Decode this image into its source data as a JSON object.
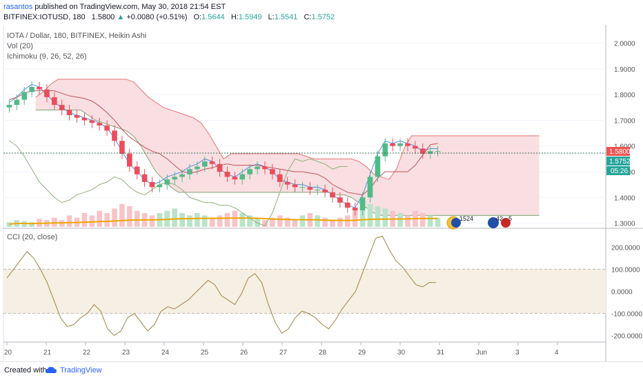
{
  "header": {
    "publisher": "rasantos",
    "published_text": "published on TradingView.com, May 30, 2018 21:54 EST",
    "symbol": "BITFINEX:IOTUSD, 180",
    "price": "1.5800",
    "change": "+0.0080 (+0.51%)",
    "o_label": "O:",
    "o_value": "1.5644",
    "h_label": "H:",
    "h_value": "1.5949",
    "l_label": "L:",
    "l_value": "1.5541",
    "c_label": "C:",
    "c_value": "1.5752"
  },
  "legend": {
    "main": "IOTA / Dollar, 180, BITFINEX, Heikin Ashi",
    "vol": "Vol (20)",
    "ichimoku": "Ichimoku (9, 26, 52, 26)",
    "cci": "CCI (20, close)"
  },
  "badges": {
    "price_current": "1.5800",
    "price_close": "1.5752",
    "countdown": "05:26",
    "event1": "1524",
    "event2": "42",
    "event3": "5"
  },
  "footer": {
    "created_with": "Created with",
    "brand": "TradingView"
  },
  "colors": {
    "up": "#26a69a",
    "up_candle": "#53b987",
    "down_candle": "#eb4d5c",
    "cloud": "#f8d7da",
    "volume_ma": "#f0a500",
    "cci_line": "#a0823d",
    "cci_band": "#f6efe3",
    "tenkan": "#4a90e2",
    "kijun": "#c2505a",
    "chikou": "#8fb078"
  },
  "chart_data": [
    {
      "type": "candlestick",
      "title": "IOTA / Dollar, 180, BITFINEX, Heikin Ashi",
      "y_axis": {
        "range": [
          1.28,
          2.05
        ],
        "ticks": [
          "2.0000",
          "1.9000",
          "1.8000",
          "1.7000",
          "1.6000",
          "1.5000",
          "1.4000",
          "1.3000"
        ]
      },
      "x_axis": {
        "ticks": [
          "20",
          "21",
          "22",
          "23",
          "24",
          "25",
          "26",
          "27",
          "28",
          "29",
          "30",
          "31",
          "Jun",
          "3",
          "4"
        ]
      },
      "close_series": [
        1.76,
        1.78,
        1.81,
        1.83,
        1.82,
        1.79,
        1.76,
        1.74,
        1.72,
        1.71,
        1.7,
        1.69,
        1.68,
        1.66,
        1.62,
        1.57,
        1.52,
        1.49,
        1.46,
        1.44,
        1.45,
        1.47,
        1.48,
        1.49,
        1.51,
        1.52,
        1.54,
        1.53,
        1.5,
        1.48,
        1.47,
        1.49,
        1.51,
        1.52,
        1.51,
        1.49,
        1.46,
        1.45,
        1.44,
        1.44,
        1.43,
        1.43,
        1.42,
        1.4,
        1.38,
        1.36,
        1.35,
        1.4,
        1.48,
        1.56,
        1.61,
        1.6,
        1.61,
        1.6,
        1.59,
        1.57,
        1.58,
        1.58
      ],
      "current_price": 1.58,
      "close": 1.5752
    },
    {
      "type": "line",
      "name": "Vol (20)",
      "values": [
        0.2,
        0.3,
        0.25,
        0.2,
        0.35,
        0.3,
        0.4,
        0.3,
        0.5,
        0.4,
        0.6,
        0.5,
        0.7,
        0.6,
        0.8,
        1.0,
        0.9,
        0.7,
        0.6,
        0.5,
        0.6,
        0.7,
        0.8,
        0.6,
        0.5,
        0.6,
        0.5,
        0.4,
        0.5,
        0.6,
        0.7,
        0.6,
        0.5,
        0.4,
        0.3,
        0.4,
        0.5,
        0.4,
        0.3,
        0.5,
        0.6,
        0.5,
        0.4,
        0.3,
        0.4,
        0.5,
        0.8,
        1.2,
        1.0,
        0.9,
        0.8,
        0.7,
        0.6,
        0.5,
        0.7,
        0.6,
        0.5,
        0.4
      ]
    },
    {
      "type": "line",
      "title": "CCI (20, close)",
      "y_axis": {
        "range": [
          -230,
          270
        ],
        "ticks": [
          "200.0000",
          "100.0000",
          "0.0000",
          "-100.0000",
          "-200.0000"
        ]
      },
      "band": [
        -100,
        100
      ],
      "values": [
        60,
        100,
        140,
        180,
        150,
        100,
        40,
        -40,
        -120,
        -160,
        -150,
        -120,
        -100,
        -60,
        -90,
        -170,
        -200,
        -180,
        -120,
        -100,
        -140,
        -180,
        -150,
        -90,
        -70,
        -80,
        -60,
        -40,
        -10,
        20,
        50,
        30,
        -20,
        -40,
        -60,
        -10,
        60,
        80,
        40,
        -60,
        -140,
        -190,
        -170,
        -120,
        -90,
        -100,
        -120,
        -150,
        -170,
        -130,
        -80,
        -40,
        0,
        80,
        160,
        240,
        250,
        190,
        140,
        110,
        70,
        30,
        20,
        40,
        40
      ]
    }
  ]
}
